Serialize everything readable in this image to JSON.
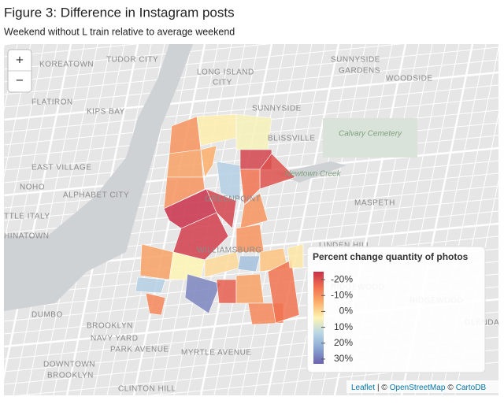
{
  "header": {
    "title": "Figure 3: Difference in Instagram posts",
    "subtitle": "Weekend without L train relative to average weekend"
  },
  "zoom": {
    "in": "+",
    "out": "−"
  },
  "map_labels": [
    "KOREATOWN",
    "TUDOR CITY",
    "LONG ISLAND",
    "CITY",
    "SUNNYSIDE",
    "GARDENS",
    "WOODSIDE",
    "FLATIRON",
    "KIPS BAY",
    "SUNNYSIDE",
    "BLISSVILLE",
    "Calvary Cemetery",
    "Newtown Creek",
    "EAST VILLAGE",
    "NOHO",
    "ALPHABET CITY",
    "GREENPOINT",
    "MASPETH",
    "TTLE ITALY",
    "HINATOWN",
    "WILLIAMSBURG",
    "LINDEN HILL",
    "RIDGEWOOD",
    "RIDGEWOOD",
    "DUMBO",
    "BROOKLYN",
    "NAVY YARD",
    "PARK AVENUE",
    "DOWNTOWN",
    "BROOKLYN",
    "MYRTLE AVENUE",
    "CLINTON HILL",
    "GLENDALE"
  ],
  "choropleth": {
    "values": [
      -10,
      3,
      5,
      -8,
      -6,
      15,
      -22,
      -20,
      -15,
      -10,
      -25,
      -22,
      -23,
      -10,
      -8,
      4,
      0,
      -10,
      18,
      -3,
      15,
      -12,
      28,
      -18,
      -8,
      -12,
      -15,
      2
    ]
  },
  "legend": {
    "title": "Percent change quantity of photos",
    "lim": [
      -25,
      33
    ],
    "colors": [
      "#c8304a",
      "#f0704f",
      "#fbb06b",
      "#fdf4b4",
      "#b9d6e6",
      "#8aa6d2",
      "#6a62ad"
    ],
    "ticks": [
      {
        "value": -20,
        "label": "-20%"
      },
      {
        "value": -10,
        "label": "-10%"
      },
      {
        "value": 0,
        "label": "0%"
      },
      {
        "value": 10,
        "label": "10%"
      },
      {
        "value": 20,
        "label": "20%"
      },
      {
        "value": 30,
        "label": "30%"
      }
    ]
  },
  "attribution": [
    "Leaflet",
    "| ©",
    "OpenStreetMap",
    "©",
    "CartoDB"
  ]
}
